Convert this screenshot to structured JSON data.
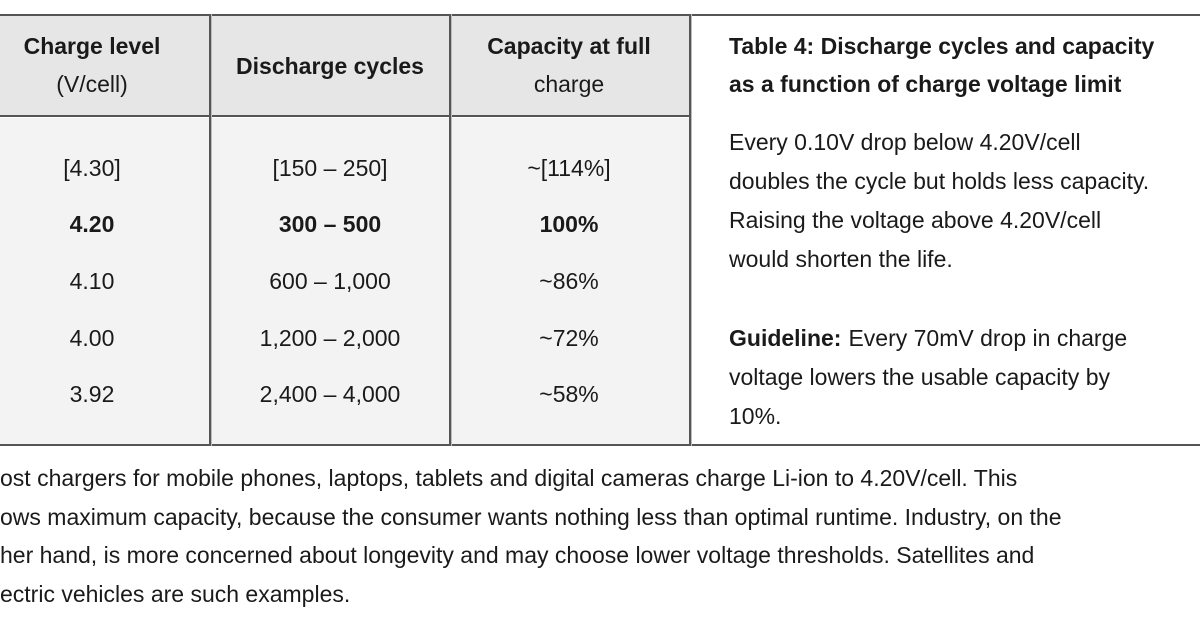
{
  "table": {
    "headers": [
      [
        "Charge level",
        "(V/cell)"
      ],
      [
        "Discharge cycles"
      ],
      [
        "Capacity at full",
        "charge"
      ]
    ],
    "rows": [
      [
        "[4.30]",
        "[150 – 250]",
        "~[114%]"
      ],
      [
        "4.20",
        "300 – 500",
        "100%"
      ],
      [
        "4.10",
        "600 – 1,000",
        "~86%"
      ],
      [
        "4.00",
        "1,200 – 2,000",
        "~72%"
      ],
      [
        "3.92",
        "2,400 – 4,000",
        "~58%"
      ]
    ]
  },
  "side": {
    "title_lines": [
      "Table 4: Discharge cycles and capacity",
      "as a function of charge voltage limit"
    ],
    "paragraph_lines": [
      "Every 0.10V drop below 4.20V/cell",
      "doubles the cycle but holds less capacity.",
      "Raising the voltage above 4.20V/cell",
      "would shorten the life."
    ],
    "guideline": {
      "label": "Guideline:",
      "lines": [
        "Every 70mV drop in charge",
        "voltage lowers the usable capacity by",
        "10%."
      ]
    }
  },
  "footer": {
    "lines": [
      "ost chargers for mobile phones, laptops, tablets and digital cameras charge Li-ion to 4.20V/cell. This",
      "ows maximum capacity, because the consumer wants nothing less than optimal runtime. Industry, on the",
      "her hand, is more concerned about longevity and may choose lower voltage thresholds. Satellites and",
      "ectric vehicles are such examples."
    ]
  }
}
